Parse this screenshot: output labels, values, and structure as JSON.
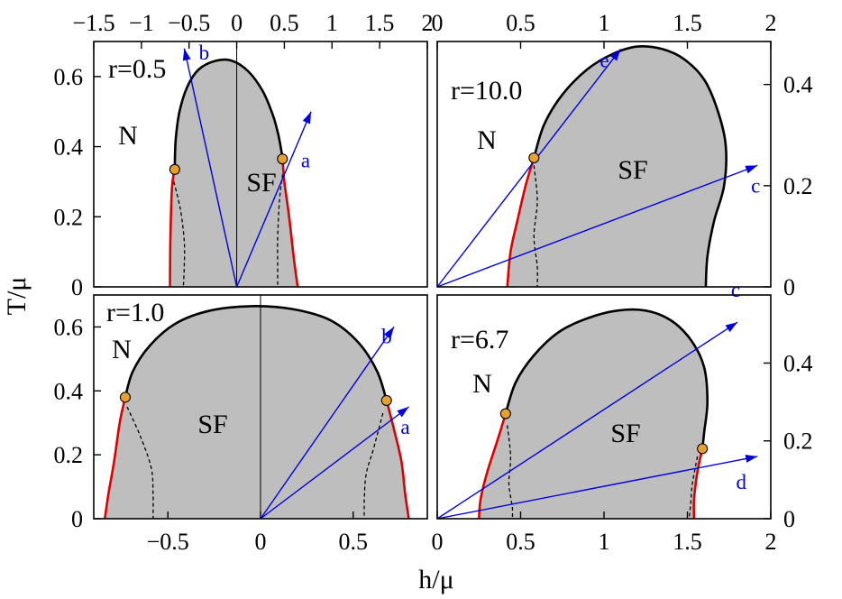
{
  "figure": {
    "ylabel": "T/μ",
    "xlabel": "h/μ"
  },
  "colors": {
    "phase_fill": "#bebebe",
    "boundary_second_order": "#000000",
    "boundary_first_order": "#dd0000",
    "tricritical_point": "#e8a030",
    "arrows": "#0000dd",
    "spinodal": "#000000"
  },
  "chart_data": [
    {
      "type": "area",
      "panel": "top-left",
      "label": "r=0.5",
      "regions": [
        "N",
        "SF"
      ],
      "x_ticks": [
        "−1.5",
        "−1",
        "−0.5",
        "0",
        "0.5",
        "1",
        "1.5",
        "2"
      ],
      "y_ticks": [
        "0",
        "0.2",
        "0.4",
        "0.6"
      ],
      "xlim": [
        -1.5,
        2.0
      ],
      "ylim": [
        0,
        0.7
      ],
      "x_ticks_position": "top",
      "y_ticks_position": "left",
      "second_order_boundary": [
        [
          -0.65,
          0.34
        ],
        [
          -0.64,
          0.42
        ],
        [
          -0.6,
          0.5
        ],
        [
          -0.52,
          0.57
        ],
        [
          -0.4,
          0.62
        ],
        [
          -0.22,
          0.645
        ],
        [
          -0.05,
          0.645
        ],
        [
          0.12,
          0.615
        ],
        [
          0.27,
          0.56
        ],
        [
          0.38,
          0.49
        ],
        [
          0.44,
          0.43
        ],
        [
          0.48,
          0.37
        ]
      ],
      "first_order_boundary": [
        [
          [
            -0.65,
            0.34
          ],
          [
            -0.68,
            0.28
          ],
          [
            -0.695,
            0.15
          ],
          [
            -0.7,
            0.04
          ],
          [
            -0.7,
            0
          ]
        ],
        [
          [
            0.48,
            0.37
          ],
          [
            0.5,
            0.3
          ],
          [
            0.55,
            0.2
          ],
          [
            0.6,
            0.08
          ],
          [
            0.64,
            0
          ]
        ]
      ],
      "spinodals": [
        [
          [
            -0.66,
            0.3
          ],
          [
            -0.59,
            0.22
          ],
          [
            -0.55,
            0.13
          ],
          [
            -0.55,
            0.06
          ],
          [
            -0.56,
            0
          ]
        ],
        [
          [
            0.49,
            0.34
          ],
          [
            0.45,
            0.25
          ],
          [
            0.43,
            0.14
          ],
          [
            0.43,
            0.06
          ],
          [
            0.43,
            0
          ]
        ]
      ],
      "tricritical_points": [
        [
          -0.65,
          0.335
        ],
        [
          0.48,
          0.365
        ]
      ],
      "arrows": [
        {
          "name": "a",
          "from": [
            0,
            0
          ],
          "to": [
            0.78,
            0.5
          ]
        },
        {
          "name": "b",
          "from": [
            0,
            0
          ],
          "to": [
            -0.55,
            0.68
          ]
        }
      ]
    },
    {
      "type": "area",
      "panel": "top-right",
      "label": "r=10.0",
      "regions": [
        "N",
        "SF"
      ],
      "x_ticks": [
        "0",
        "0.5",
        "1",
        "1.5",
        "2"
      ],
      "y_ticks": [
        "0",
        "0.2",
        "0.4"
      ],
      "xlim": [
        0,
        2.0
      ],
      "ylim": [
        0,
        0.485
      ],
      "x_ticks_position": "top",
      "y_ticks_position": "right",
      "second_order_boundary": [
        [
          0.58,
          0.255
        ],
        [
          0.64,
          0.32
        ],
        [
          0.75,
          0.38
        ],
        [
          0.9,
          0.43
        ],
        [
          1.05,
          0.46
        ],
        [
          1.2,
          0.475
        ],
        [
          1.35,
          0.47
        ],
        [
          1.48,
          0.45
        ],
        [
          1.6,
          0.41
        ],
        [
          1.68,
          0.35
        ],
        [
          1.73,
          0.28
        ],
        [
          1.72,
          0.2
        ],
        [
          1.66,
          0.13
        ],
        [
          1.62,
          0.06
        ],
        [
          1.61,
          0
        ]
      ],
      "first_order_boundary": [
        [
          [
            0.58,
            0.255
          ],
          [
            0.53,
            0.2
          ],
          [
            0.48,
            0.13
          ],
          [
            0.44,
            0.07
          ],
          [
            0.42,
            0
          ]
        ]
      ],
      "spinodals": [
        [
          [
            0.58,
            0.24
          ],
          [
            0.6,
            0.17
          ],
          [
            0.58,
            0.1
          ],
          [
            0.6,
            0.04
          ],
          [
            0.6,
            0
          ]
        ]
      ],
      "tricritical_points": [
        [
          0.58,
          0.255
        ]
      ],
      "arrows": [
        {
          "name": "e",
          "from": [
            0,
            0
          ],
          "to": [
            1.1,
            0.47
          ]
        },
        {
          "name": "c",
          "from": [
            0,
            0
          ],
          "to": [
            1.92,
            0.24
          ]
        }
      ]
    },
    {
      "type": "area",
      "panel": "bottom-left",
      "label": "r=1.0",
      "regions": [
        "N",
        "SF"
      ],
      "x_ticks": [
        "−0.5",
        "0",
        "0.5"
      ],
      "y_ticks": [
        "0",
        "0.2",
        "0.4",
        "0.6"
      ],
      "xlim": [
        -0.9,
        0.9
      ],
      "ylim": [
        0,
        0.7
      ],
      "x_ticks_position": "bottom",
      "y_ticks_position": "left",
      "second_order_boundary": [
        [
          -0.73,
          0.38
        ],
        [
          -0.69,
          0.46
        ],
        [
          -0.6,
          0.54
        ],
        [
          -0.46,
          0.61
        ],
        [
          -0.28,
          0.65
        ],
        [
          -0.05,
          0.665
        ],
        [
          0.18,
          0.655
        ],
        [
          0.38,
          0.62
        ],
        [
          0.53,
          0.55
        ],
        [
          0.63,
          0.46
        ],
        [
          0.68,
          0.37
        ]
      ],
      "first_order_boundary": [
        [
          [
            -0.73,
            0.38
          ],
          [
            -0.76,
            0.3
          ],
          [
            -0.79,
            0.18
          ],
          [
            -0.82,
            0.08
          ],
          [
            -0.84,
            0
          ]
        ],
        [
          [
            0.68,
            0.37
          ],
          [
            0.72,
            0.28
          ],
          [
            0.76,
            0.18
          ],
          [
            0.78,
            0.08
          ],
          [
            0.8,
            0
          ]
        ]
      ],
      "spinodals": [
        [
          [
            -0.72,
            0.35
          ],
          [
            -0.65,
            0.26
          ],
          [
            -0.59,
            0.16
          ],
          [
            -0.58,
            0.08
          ],
          [
            -0.58,
            0
          ]
        ],
        [
          [
            0.66,
            0.33
          ],
          [
            0.61,
            0.22
          ],
          [
            0.57,
            0.14
          ],
          [
            0.56,
            0.06
          ],
          [
            0.56,
            0
          ]
        ]
      ],
      "tricritical_points": [
        [
          -0.73,
          0.38
        ],
        [
          0.68,
          0.37
        ]
      ],
      "arrows": [
        {
          "name": "b",
          "from": [
            0,
            0
          ],
          "to": [
            0.72,
            0.6
          ]
        },
        {
          "name": "a",
          "from": [
            0,
            0
          ],
          "to": [
            0.8,
            0.35
          ]
        }
      ]
    },
    {
      "type": "area",
      "panel": "bottom-right",
      "label": "r=6.7",
      "regions": [
        "N",
        "SF"
      ],
      "x_ticks": [
        "0",
        "0.5",
        "1",
        "1.5",
        "2"
      ],
      "y_ticks": [
        "0",
        "0.2",
        "0.4"
      ],
      "xlim": [
        0,
        2.0
      ],
      "ylim": [
        0,
        0.575
      ],
      "x_ticks_position": "bottom",
      "y_ticks_position": "right",
      "second_order_boundary": [
        [
          0.41,
          0.27
        ],
        [
          0.47,
          0.35
        ],
        [
          0.58,
          0.42
        ],
        [
          0.73,
          0.48
        ],
        [
          0.9,
          0.515
        ],
        [
          1.08,
          0.535
        ],
        [
          1.25,
          0.535
        ],
        [
          1.4,
          0.51
        ],
        [
          1.52,
          0.46
        ],
        [
          1.6,
          0.39
        ],
        [
          1.62,
          0.3
        ],
        [
          1.6,
          0.22
        ],
        [
          1.59,
          0.18
        ]
      ],
      "first_order_boundary": [
        [
          [
            0.41,
            0.27
          ],
          [
            0.36,
            0.2
          ],
          [
            0.3,
            0.12
          ],
          [
            0.26,
            0.05
          ],
          [
            0.25,
            0
          ]
        ],
        [
          [
            1.59,
            0.18
          ],
          [
            1.56,
            0.12
          ],
          [
            1.54,
            0.05
          ],
          [
            1.54,
            0
          ]
        ]
      ],
      "spinodals": [
        [
          [
            0.42,
            0.24
          ],
          [
            0.44,
            0.16
          ],
          [
            0.43,
            0.09
          ],
          [
            0.45,
            0.03
          ],
          [
            0.45,
            0
          ]
        ],
        [
          [
            1.56,
            0.16
          ],
          [
            1.53,
            0.09
          ],
          [
            1.52,
            0.04
          ],
          [
            1.51,
            0
          ]
        ]
      ],
      "tricritical_points": [
        [
          0.41,
          0.27
        ],
        [
          1.59,
          0.18
        ]
      ],
      "arrows": [
        {
          "name": "c",
          "from": [
            0,
            0
          ],
          "to": [
            1.8,
            0.505
          ]
        },
        {
          "name": "d",
          "from": [
            0,
            0
          ],
          "to": [
            1.92,
            0.16
          ]
        }
      ]
    }
  ]
}
